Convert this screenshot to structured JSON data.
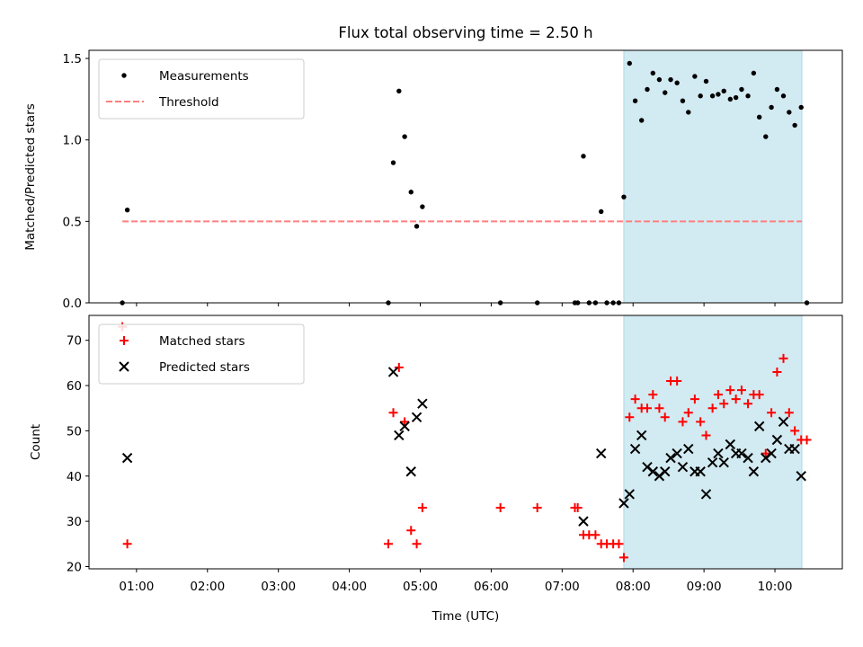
{
  "title": "Flux total observing time = 2.50 h",
  "colors": {
    "highlight": "#add8e6",
    "threshold": "#ff7f7f",
    "matched": "#ff0000",
    "predicted": "#000000",
    "measure": "#000000"
  },
  "chart_data": [
    {
      "type": "scatter",
      "ylabel": "Matched/Predicted stars",
      "xlim": [
        0.33,
        10.95
      ],
      "ylim": [
        0,
        1.55
      ],
      "yticks": [
        0.0,
        0.5,
        1.0,
        1.5
      ],
      "ytick_labels": [
        "0.0",
        "0.5",
        "1.0",
        "1.5"
      ],
      "highlight_span": [
        7.87,
        10.38
      ],
      "threshold": {
        "value": 0.5,
        "x_range": [
          0.8,
          10.38
        ]
      },
      "legend": {
        "position": "top-left",
        "items": [
          {
            "label": "Measurements",
            "kind": "dot"
          },
          {
            "label": "Threshold",
            "kind": "dash"
          }
        ]
      },
      "series": [
        {
          "name": "Measurements",
          "points": [
            [
              0.8,
              0.0
            ],
            [
              0.87,
              0.57
            ],
            [
              4.55,
              0.0
            ],
            [
              4.62,
              0.86
            ],
            [
              4.7,
              1.3
            ],
            [
              4.78,
              1.02
            ],
            [
              4.87,
              0.68
            ],
            [
              4.95,
              0.47
            ],
            [
              5.03,
              0.59
            ],
            [
              6.13,
              0.0
            ],
            [
              6.65,
              0.0
            ],
            [
              7.18,
              0.0
            ],
            [
              7.22,
              0.0
            ],
            [
              7.3,
              0.9
            ],
            [
              7.38,
              0.0
            ],
            [
              7.47,
              0.0
            ],
            [
              7.55,
              0.56
            ],
            [
              7.63,
              0.0
            ],
            [
              7.72,
              0.0
            ],
            [
              7.8,
              0.0
            ],
            [
              7.87,
              0.65
            ],
            [
              7.95,
              1.47
            ],
            [
              8.03,
              1.24
            ],
            [
              8.12,
              1.12
            ],
            [
              8.2,
              1.31
            ],
            [
              8.28,
              1.41
            ],
            [
              8.37,
              1.37
            ],
            [
              8.45,
              1.29
            ],
            [
              8.53,
              1.37
            ],
            [
              8.62,
              1.35
            ],
            [
              8.7,
              1.24
            ],
            [
              8.78,
              1.17
            ],
            [
              8.87,
              1.39
            ],
            [
              8.95,
              1.27
            ],
            [
              9.03,
              1.36
            ],
            [
              9.12,
              1.27
            ],
            [
              9.2,
              1.28
            ],
            [
              9.28,
              1.3
            ],
            [
              9.37,
              1.25
            ],
            [
              9.45,
              1.26
            ],
            [
              9.53,
              1.31
            ],
            [
              9.62,
              1.27
            ],
            [
              9.7,
              1.41
            ],
            [
              9.78,
              1.14
            ],
            [
              9.87,
              1.02
            ],
            [
              9.95,
              1.2
            ],
            [
              10.03,
              1.31
            ],
            [
              10.12,
              1.27
            ],
            [
              10.2,
              1.17
            ],
            [
              10.28,
              1.09
            ],
            [
              10.37,
              1.2
            ],
            [
              10.45,
              0.0
            ]
          ]
        }
      ]
    },
    {
      "type": "scatter",
      "ylabel": "Count",
      "xlabel": "Time (UTC)",
      "xlim": [
        0.33,
        10.95
      ],
      "ylim": [
        19.5,
        75.5
      ],
      "yticks": [
        20,
        30,
        40,
        50,
        60,
        70
      ],
      "ytick_labels": [
        "20",
        "30",
        "40",
        "50",
        "60",
        "70"
      ],
      "xticks": [
        1,
        2,
        3,
        4,
        5,
        6,
        7,
        8,
        9,
        10
      ],
      "xtick_labels": [
        "01:00",
        "02:00",
        "03:00",
        "04:00",
        "05:00",
        "06:00",
        "07:00",
        "08:00",
        "09:00",
        "10:00"
      ],
      "highlight_span": [
        7.87,
        10.38
      ],
      "legend": {
        "position": "top-left",
        "items": [
          {
            "label": "Matched stars",
            "kind": "plus"
          },
          {
            "label": "Predicted stars",
            "kind": "cross"
          }
        ]
      },
      "series": [
        {
          "name": "Matched stars",
          "marker": "plus",
          "points": [
            [
              0.8,
              73
            ],
            [
              0.87,
              25
            ],
            [
              4.55,
              25
            ],
            [
              4.62,
              54
            ],
            [
              4.7,
              64
            ],
            [
              4.78,
              52
            ],
            [
              4.87,
              28
            ],
            [
              4.95,
              25
            ],
            [
              5.03,
              33
            ],
            [
              6.13,
              33
            ],
            [
              6.65,
              33
            ],
            [
              7.18,
              33
            ],
            [
              7.22,
              33
            ],
            [
              7.3,
              27
            ],
            [
              7.38,
              27
            ],
            [
              7.47,
              27
            ],
            [
              7.55,
              25
            ],
            [
              7.63,
              25
            ],
            [
              7.72,
              25
            ],
            [
              7.8,
              25
            ],
            [
              7.87,
              22
            ],
            [
              7.95,
              53
            ],
            [
              8.03,
              57
            ],
            [
              8.12,
              55
            ],
            [
              8.2,
              55
            ],
            [
              8.28,
              58
            ],
            [
              8.37,
              55
            ],
            [
              8.45,
              53
            ],
            [
              8.53,
              61
            ],
            [
              8.62,
              61
            ],
            [
              8.7,
              52
            ],
            [
              8.78,
              54
            ],
            [
              8.87,
              57
            ],
            [
              8.95,
              52
            ],
            [
              9.03,
              49
            ],
            [
              9.12,
              55
            ],
            [
              9.2,
              58
            ],
            [
              9.28,
              56
            ],
            [
              9.37,
              59
            ],
            [
              9.45,
              57
            ],
            [
              9.53,
              59
            ],
            [
              9.62,
              56
            ],
            [
              9.7,
              58
            ],
            [
              9.78,
              58
            ],
            [
              9.87,
              45
            ],
            [
              9.95,
              54
            ],
            [
              10.03,
              63
            ],
            [
              10.12,
              66
            ],
            [
              10.2,
              54
            ],
            [
              10.28,
              50
            ],
            [
              10.37,
              48
            ],
            [
              10.45,
              48
            ]
          ]
        },
        {
          "name": "Predicted stars",
          "marker": "cross",
          "points": [
            [
              0.87,
              44
            ],
            [
              4.62,
              63
            ],
            [
              4.7,
              49
            ],
            [
              4.78,
              51
            ],
            [
              4.87,
              41
            ],
            [
              4.95,
              53
            ],
            [
              5.03,
              56
            ],
            [
              7.3,
              30
            ],
            [
              7.55,
              45
            ],
            [
              7.87,
              34
            ],
            [
              7.95,
              36
            ],
            [
              8.03,
              46
            ],
            [
              8.12,
              49
            ],
            [
              8.2,
              42
            ],
            [
              8.28,
              41
            ],
            [
              8.37,
              40
            ],
            [
              8.45,
              41
            ],
            [
              8.53,
              44
            ],
            [
              8.62,
              45
            ],
            [
              8.7,
              42
            ],
            [
              8.78,
              46
            ],
            [
              8.87,
              41
            ],
            [
              8.95,
              41
            ],
            [
              9.03,
              36
            ],
            [
              9.12,
              43
            ],
            [
              9.2,
              45
            ],
            [
              9.28,
              43
            ],
            [
              9.37,
              47
            ],
            [
              9.45,
              45
            ],
            [
              9.53,
              45
            ],
            [
              9.62,
              44
            ],
            [
              9.7,
              41
            ],
            [
              9.78,
              51
            ],
            [
              9.87,
              44
            ],
            [
              9.95,
              45
            ],
            [
              10.03,
              48
            ],
            [
              10.12,
              52
            ],
            [
              10.2,
              46
            ],
            [
              10.28,
              46
            ],
            [
              10.37,
              40
            ]
          ]
        }
      ]
    }
  ]
}
